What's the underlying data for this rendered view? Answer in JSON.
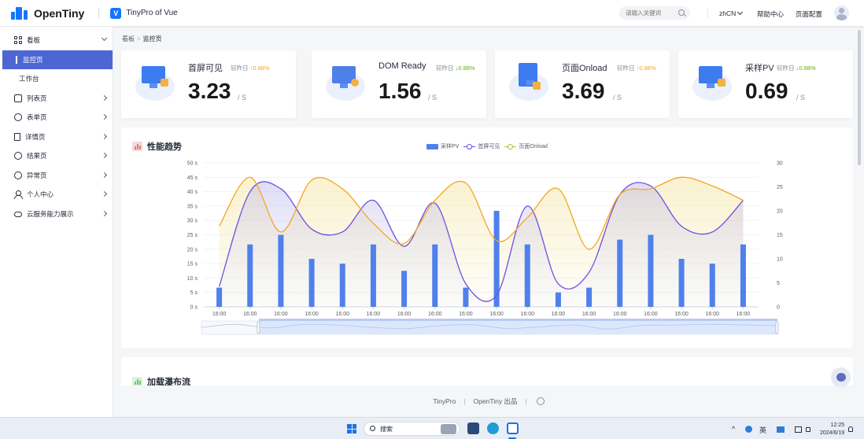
{
  "header": {
    "logo_text": "OpenTiny",
    "app_badge": "V",
    "app_name": "TinyPro of Vue",
    "search_placeholder": "请输入关键词",
    "lang": "zhCN",
    "help": "帮助中心",
    "page_config": "页面配置"
  },
  "sidebar": {
    "items": [
      {
        "label": "看板",
        "icon": "dashboard-icon",
        "expanded": true
      },
      {
        "label": "监控页",
        "sub": true,
        "active": true
      },
      {
        "label": "工作台",
        "sub": true
      },
      {
        "label": "列表页",
        "icon": "list-icon"
      },
      {
        "label": "表单页",
        "icon": "form-icon"
      },
      {
        "label": "详情页",
        "icon": "detail-icon"
      },
      {
        "label": "结果页",
        "icon": "result-icon"
      },
      {
        "label": "异常页",
        "icon": "exception-icon"
      },
      {
        "label": "个人中心",
        "icon": "user-icon"
      },
      {
        "label": "云服务能力展示",
        "icon": "cloud-icon"
      }
    ]
  },
  "breadcrumb": {
    "root": "看板",
    "sep": ">",
    "current": "监控页"
  },
  "cards": [
    {
      "label": "首屏可见",
      "compare": "较昨日",
      "trend": "up",
      "arrow": "↑",
      "pct": "0.88%",
      "value": "3.23",
      "unit": "/ S"
    },
    {
      "label": "DOM Ready",
      "compare": "较昨日",
      "trend": "down",
      "arrow": "↓",
      "pct": "0.88%",
      "value": "1.56",
      "unit": "/ S"
    },
    {
      "label": "页面Onload",
      "compare": "较昨日",
      "trend": "up",
      "arrow": "↑",
      "pct": "0.88%",
      "value": "3.69",
      "unit": "/ S"
    },
    {
      "label": "采样PV",
      "compare": "较昨日",
      "trend": "down",
      "arrow": "↓",
      "pct": "0.88%",
      "value": "0.69",
      "unit": "/ S"
    }
  ],
  "chart_data": {
    "type": "bar",
    "title": "性能趋势",
    "categories": [
      "16:00",
      "16:00",
      "16:00",
      "16:00",
      "16:00",
      "16:00",
      "16:00",
      "16:00",
      "16:00",
      "16:00",
      "16:00",
      "16:00",
      "16:00",
      "16:00",
      "16:00",
      "16:00",
      "16:00",
      "16:00"
    ],
    "series": [
      {
        "name": "采样PV",
        "type": "bar",
        "axis": "right",
        "color": "#4f80ec",
        "values": [
          4,
          13,
          15,
          10,
          9,
          13,
          7.5,
          13,
          4,
          20,
          13,
          3,
          4,
          14,
          15,
          10,
          9,
          13
        ]
      },
      {
        "name": "首屏可见",
        "type": "line",
        "axis": "left",
        "color": "#6f4fe0",
        "values": [
          7,
          40,
          41,
          27,
          26,
          37,
          21,
          36,
          8,
          4,
          35,
          8,
          12,
          39,
          42,
          28,
          26,
          37
        ]
      },
      {
        "name": "页面Onload",
        "type": "line",
        "axis": "left",
        "color": "#f5a623",
        "values": [
          28,
          45,
          26,
          44,
          41,
          29,
          22,
          37,
          43,
          23,
          31,
          41,
          20,
          39,
          41,
          45,
          42,
          37
        ]
      }
    ],
    "y_left": {
      "ticks": [
        "0 s",
        "5 s",
        "10 s",
        "15 s",
        "20 s",
        "25 s",
        "30 s",
        "35 s",
        "40 s",
        "45 s",
        "50 s"
      ],
      "min": 0,
      "max": 50
    },
    "y_right": {
      "ticks": [
        "0",
        "5",
        "10",
        "15",
        "20",
        "25",
        "30"
      ],
      "min": 0,
      "max": 30
    },
    "legend_position": "top-center",
    "grid": true,
    "data_zoom": true
  },
  "panel2": {
    "title": "加载瀑布流"
  },
  "footer": {
    "brand": "TinyPro",
    "sep": "|",
    "credit": "OpenTiny 出品"
  },
  "taskbar": {
    "search": "搜索",
    "ime": "英",
    "time": "12:25",
    "date": "2024/6/19"
  }
}
